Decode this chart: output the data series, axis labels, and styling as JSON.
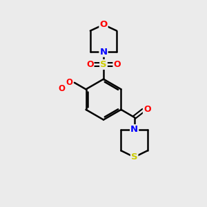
{
  "background_color": "#ebebeb",
  "atom_colors": {
    "C": "#000000",
    "N": "#0000ff",
    "O": "#ff0000",
    "S_sulfonyl": "#cccc00",
    "S_thio": "#cccc00"
  },
  "bond_color": "#000000",
  "bond_width": 1.8,
  "figsize": [
    3.0,
    3.0
  ],
  "dpi": 100,
  "xlim": [
    0,
    10
  ],
  "ylim": [
    0,
    10
  ]
}
